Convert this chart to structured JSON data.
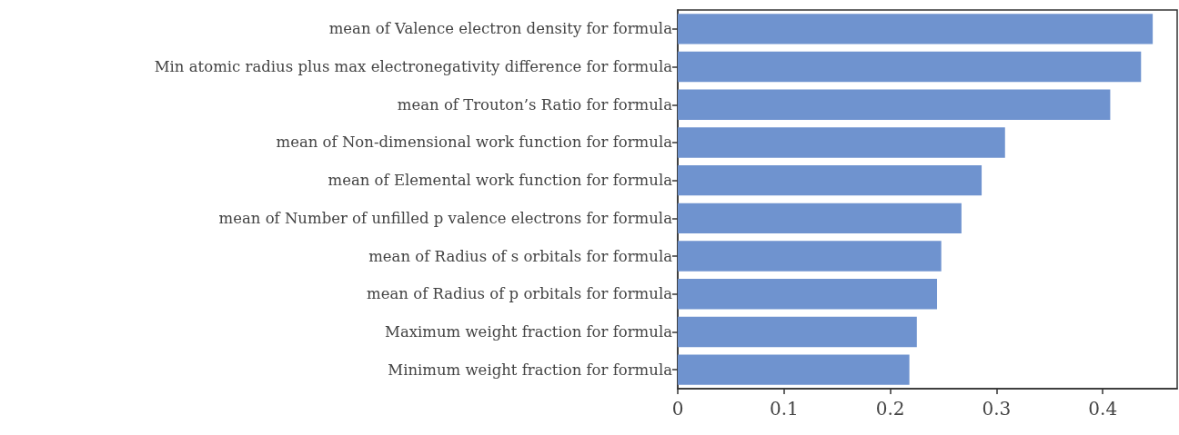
{
  "chart_data": {
    "type": "bar",
    "orientation": "horizontal",
    "categories": [
      "mean of Valence electron density for formula",
      "Min atomic radius plus max electronegativity difference for formula",
      "mean of Trouton’s Ratio for formula",
      "mean of Non-dimensional work function for formula",
      "mean of Elemental work function for formula",
      "mean of Number of unfilled p valence electrons for formula",
      "mean of Radius of s orbitals for formula",
      "mean of Radius of p orbitals for formula",
      "Maximum weight fraction for formula",
      "Minimum weight fraction for formula"
    ],
    "values": [
      0.447,
      0.436,
      0.407,
      0.308,
      0.286,
      0.267,
      0.248,
      0.244,
      0.225,
      0.218
    ],
    "color": "#6f93cf",
    "xlim": [
      0,
      0.47
    ],
    "xticks": [
      0,
      0.1,
      0.2,
      0.3,
      0.4
    ],
    "grid": false
  }
}
